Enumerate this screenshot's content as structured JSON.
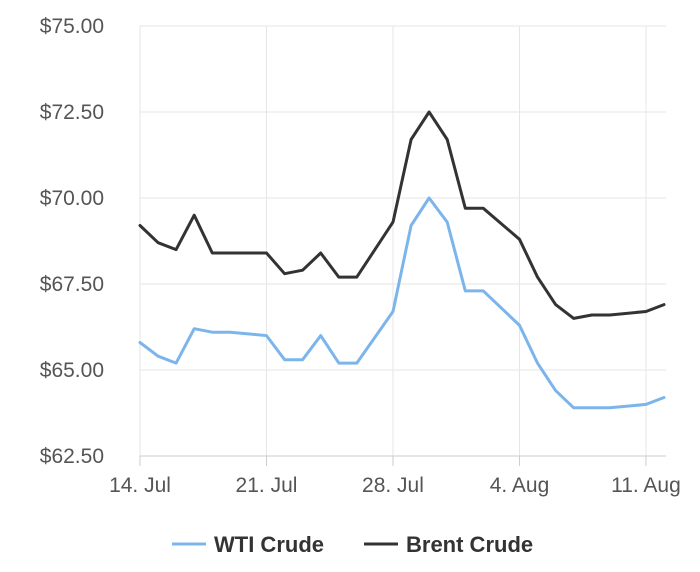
{
  "chart_data": {
    "type": "line",
    "title": "",
    "xlabel": "",
    "ylabel": "",
    "ylim": [
      62.5,
      75.0
    ],
    "y_ticks": [
      "$62.50",
      "$65.00",
      "$67.50",
      "$70.00",
      "$72.50",
      "$75.00"
    ],
    "y_tick_values": [
      62.5,
      65.0,
      67.5,
      70.0,
      72.5,
      75.0
    ],
    "x_ticks": [
      "14. Jul",
      "21. Jul",
      "28. Jul",
      "4. Aug",
      "11. Aug"
    ],
    "x_tick_days": [
      0,
      7,
      14,
      21,
      28
    ],
    "xlim_days": [
      0,
      29
    ],
    "x_axis_start": "14. Jul",
    "grid": true,
    "legend_position": "bottom",
    "series": [
      {
        "name": "WTI Crude",
        "color": "#7cb5ec",
        "x": [
          0,
          1,
          2,
          3,
          4,
          5,
          7,
          8,
          9,
          10,
          11,
          12,
          14,
          15,
          16,
          17,
          18,
          19,
          21,
          22,
          23,
          24,
          25,
          26,
          28,
          29
        ],
        "values": [
          65.8,
          65.4,
          65.2,
          66.2,
          66.1,
          66.1,
          66.0,
          65.3,
          65.3,
          66.0,
          65.2,
          65.2,
          66.7,
          69.2,
          70.0,
          69.3,
          67.3,
          67.3,
          66.3,
          65.2,
          64.4,
          63.9,
          63.9,
          63.9,
          64.0,
          64.2
        ]
      },
      {
        "name": "Brent Crude",
        "color": "#333333",
        "x": [
          0,
          1,
          2,
          3,
          4,
          5,
          7,
          8,
          9,
          10,
          11,
          12,
          14,
          15,
          16,
          17,
          18,
          19,
          21,
          22,
          23,
          24,
          25,
          26,
          28,
          29
        ],
        "values": [
          69.2,
          68.7,
          68.5,
          69.5,
          68.4,
          68.4,
          68.4,
          67.8,
          67.9,
          68.4,
          67.7,
          67.7,
          69.3,
          71.7,
          72.5,
          71.7,
          69.7,
          69.7,
          68.8,
          67.7,
          66.9,
          66.5,
          66.6,
          66.6,
          66.7,
          66.9
        ]
      }
    ]
  }
}
